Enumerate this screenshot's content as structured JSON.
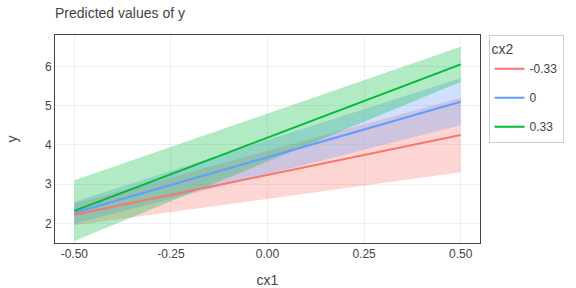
{
  "chart_data": {
    "type": "line",
    "title": "Predicted values of y",
    "xlabel": "cx1",
    "ylabel": "y",
    "legend_title": "cx2",
    "x": [
      -0.5,
      0.5
    ],
    "series": [
      {
        "name": "-0.33",
        "color": "#F8766D",
        "values": [
          2.22,
          4.25
        ],
        "ci_low": [
          1.95,
          3.3
        ],
        "ci_high": [
          2.5,
          5.2
        ]
      },
      {
        "name": "0",
        "color": "#619CFF",
        "values": [
          2.27,
          5.1
        ],
        "ci_low": [
          2.0,
          4.5
        ],
        "ci_high": [
          2.55,
          5.7
        ]
      },
      {
        "name": "0.33",
        "color": "#00BA38",
        "values": [
          2.32,
          6.05
        ],
        "ci_low": [
          1.55,
          5.6
        ],
        "ci_high": [
          3.1,
          6.5
        ]
      }
    ],
    "xlim": [
      -0.55,
      0.55
    ],
    "ylim": [
      1.5,
      6.8
    ],
    "xticks": [
      {
        "value": -0.5,
        "label": "-0.50"
      },
      -0.25,
      {
        "value": 0,
        "label": "0.00"
      },
      0.25,
      {
        "value": 0.5,
        "label": "0.50"
      }
    ],
    "yticks": [
      2,
      3,
      4,
      5,
      6
    ],
    "grid": true,
    "legend": "right"
  }
}
